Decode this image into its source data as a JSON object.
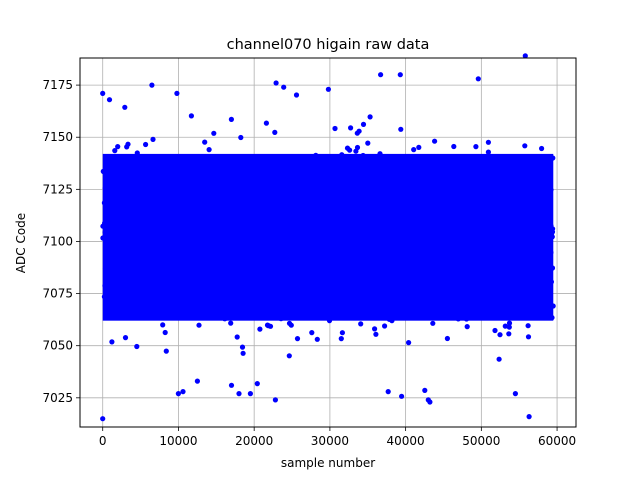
{
  "chart_data": {
    "type": "scatter",
    "title": "channel070 higain raw data",
    "xlabel": "sample number",
    "ylabel": "ADC Code",
    "xlim": [
      -3000,
      62500
    ],
    "ylim": [
      7011,
      7188
    ],
    "xticks": [
      0,
      10000,
      20000,
      30000,
      40000,
      50000,
      60000
    ],
    "yticks": [
      7025,
      7050,
      7075,
      7100,
      7125,
      7150,
      7175
    ],
    "grid": true,
    "marker_color": "#0000ff",
    "series": [
      {
        "x_range": [
          0,
          59500
        ],
        "n_points": 59500,
        "dense_band": [
          7062,
          7142
        ],
        "outliers": [
          {
            "x": 0,
            "y": 7015
          },
          {
            "x": 0,
            "y": 7171
          },
          {
            "x": 900,
            "y": 7168
          },
          {
            "x": 6500,
            "y": 7175
          },
          {
            "x": 9800,
            "y": 7171
          },
          {
            "x": 10000,
            "y": 7027
          },
          {
            "x": 10600,
            "y": 7028
          },
          {
            "x": 12500,
            "y": 7033
          },
          {
            "x": 17000,
            "y": 7031
          },
          {
            "x": 18000,
            "y": 7027
          },
          {
            "x": 19500,
            "y": 7027
          },
          {
            "x": 22800,
            "y": 7024
          },
          {
            "x": 22900,
            "y": 7176
          },
          {
            "x": 23900,
            "y": 7174
          },
          {
            "x": 29800,
            "y": 7173
          },
          {
            "x": 36700,
            "y": 7180
          },
          {
            "x": 37700,
            "y": 7028
          },
          {
            "x": 39300,
            "y": 7180
          },
          {
            "x": 43000,
            "y": 7024
          },
          {
            "x": 43200,
            "y": 7023
          },
          {
            "x": 49600,
            "y": 7178
          },
          {
            "x": 54500,
            "y": 7027
          },
          {
            "x": 55800,
            "y": 7189
          },
          {
            "x": 56300,
            "y": 7016
          }
        ]
      }
    ]
  }
}
